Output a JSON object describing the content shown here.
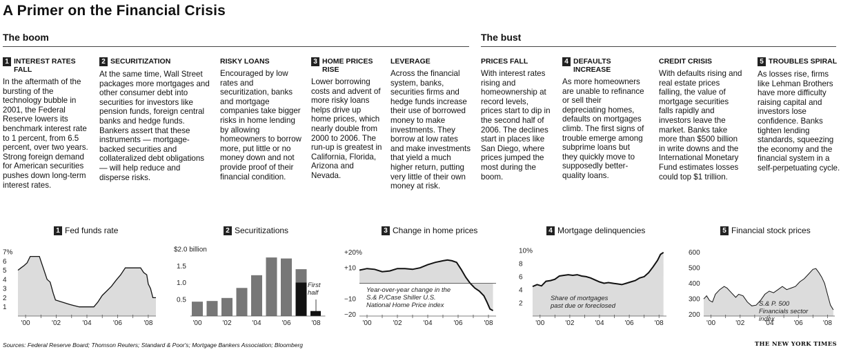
{
  "title": "A Primer on the Financial Crisis",
  "sections": {
    "boom": "The boom",
    "bust": "The bust"
  },
  "columns": [
    {
      "num": "1",
      "head": "INTEREST RATES FALL",
      "body": "In the aftermath of the bursting of the technology bubble in 2001, the Federal Reserve lowers its benchmark interest rate to 1 percent, from 6.5 percent, over two years. Strong foreign demand for American securities pushes down long-term interest rates."
    },
    {
      "num": "2",
      "head": "SECURITIZATION",
      "body": "At the same time, Wall Street packages more mortgages and other consumer debt into securities for investors like pension funds, foreign central banks and hedge funds. Bankers assert that these instruments — mortgage-backed securities and collateralized debt obligations — will help reduce and disperse risks."
    },
    {
      "num": "",
      "head": "RISKY LOANS",
      "body": "Encouraged by low rates and securitization, banks and mortgage companies take bigger risks in home lending by allowing homeowners to borrow more, put little or no money down and not provide proof of their financial condition."
    },
    {
      "num": "3",
      "head": "HOME PRICES RISE",
      "body": "Lower borrowing costs and advent of more risky loans helps drive up home prices, which nearly double from 2000 to 2006. The run-up is greatest in California, Florida, Arizona and Nevada."
    },
    {
      "num": "",
      "head": "LEVERAGE",
      "body": "Across the financial system, banks, securities firms and hedge funds increase their use of borrowed money to make investments. They borrow at low rates and make investments that yield a much higher return, putting very little of their own money at risk."
    },
    {
      "num": "",
      "head": "PRICES FALL",
      "body": "With interest rates rising and homeownership at record levels, prices start to dip in the second half of 2006. The declines start in places like San Diego, where prices jumped the most during the boom."
    },
    {
      "num": "4",
      "head": "DEFAULTS INCREASE",
      "body": "As more homeowners are unable to refinance or sell their depreciating homes, defaults on mortgages climb. The first signs of trouble emerge among subprime loans but they quickly move to supposedly better-quality loans."
    },
    {
      "num": "",
      "head": "CREDIT CRISIS",
      "body": "With defaults rising and real estate prices falling, the value of mortgage securities falls rapidly and investors leave the market. Banks take more than $500 billion in write downs and the International Monetary Fund estimates losses could top $1 trillion."
    },
    {
      "num": "5",
      "head": "TROUBLES SPIRAL",
      "body": "As losses rise, firms like Lehman Brothers have more difficulty raising capital and investors lose confidence. Banks tighten lending standards, squeezing the economy and the financial system in a self-perpetuating cycle."
    }
  ],
  "chart_data": [
    {
      "type": "area",
      "num": "1",
      "title": "Fed funds rate",
      "yticks": [
        "7%",
        "6",
        "5",
        "4",
        "3",
        "2",
        "1"
      ],
      "ylim": [
        0,
        7.3
      ],
      "xlim": [
        1999.5,
        2008.5
      ],
      "xticks": [
        "'00",
        "'02",
        "'04",
        "'06",
        "'08"
      ],
      "x": [
        1999.5,
        1999.7,
        1999.9,
        2000.1,
        2000.3,
        2000.5,
        2000.9,
        2001.0,
        2001.2,
        2001.4,
        2001.6,
        2001.8,
        2001.95,
        2002.9,
        2003.5,
        2004.45,
        2004.7,
        2005.0,
        2005.3,
        2005.6,
        2005.9,
        2006.2,
        2006.5,
        2006.7,
        2007.0,
        2007.5,
        2007.7,
        2007.9,
        2008.0,
        2008.15,
        2008.3,
        2008.5
      ],
      "y": [
        5.0,
        5.25,
        5.5,
        5.8,
        6.5,
        6.5,
        6.5,
        6.0,
        5.0,
        4.0,
        3.7,
        2.5,
        1.75,
        1.25,
        1.0,
        1.0,
        1.5,
        2.25,
        2.75,
        3.25,
        3.9,
        4.5,
        5.25,
        5.25,
        5.25,
        5.25,
        4.75,
        4.5,
        3.5,
        3.0,
        2.0,
        2.0
      ]
    },
    {
      "type": "bar",
      "num": "2",
      "title": "Securitizations",
      "yticks": [
        "$2.0 billion",
        "1.5",
        "1.0",
        "0.5"
      ],
      "ylim": [
        0,
        2.0
      ],
      "categories": [
        "'00",
        "'01",
        "'02",
        "'03",
        "'04",
        "'05",
        "'06",
        "'07",
        "'08"
      ],
      "values": [
        0.43,
        0.45,
        0.54,
        0.84,
        1.22,
        1.75,
        1.72,
        1.4,
        0.15
      ],
      "first_half_2007": 1.0,
      "annotation": "First half"
    },
    {
      "type": "line",
      "num": "3",
      "title": "Change in home prices",
      "yticks": [
        "+20%",
        "+10",
        "−10",
        "−20"
      ],
      "ylim": [
        -21,
        22
      ],
      "xlim": [
        1999.5,
        2008.5
      ],
      "xticks": [
        "'00",
        "'02",
        "'04",
        "'06",
        "'08"
      ],
      "x": [
        1999.5,
        2000.0,
        2000.5,
        2001.0,
        2001.5,
        2002.0,
        2002.5,
        2003.0,
        2003.5,
        2004.0,
        2004.5,
        2005.0,
        2005.3,
        2005.6,
        2005.9,
        2006.2,
        2006.5,
        2006.8,
        2007.1,
        2007.4,
        2007.7,
        2007.9,
        2008.1,
        2008.3
      ],
      "y": [
        8.5,
        9.5,
        9.0,
        7.5,
        8.0,
        9.5,
        9.5,
        9.0,
        10.0,
        12.0,
        13.5,
        14.5,
        15.0,
        14.5,
        13.5,
        9.0,
        4.0,
        0.0,
        -3.0,
        -5.0,
        -8.0,
        -12.0,
        -16.5,
        -17.5
      ],
      "note": "Year-over-year change in the S.& P./Case Shiller U.S. National Home Price index"
    },
    {
      "type": "area",
      "num": "4",
      "title": "Mortgage delinquencies",
      "yticks": [
        "10%",
        "8",
        "6",
        "4",
        "2"
      ],
      "ylim": [
        0,
        10.2
      ],
      "xlim": [
        1999.5,
        2008.5
      ],
      "xticks": [
        "'00",
        "'02",
        "'04",
        "'06",
        "'08"
      ],
      "x": [
        1999.5,
        1999.8,
        2000.1,
        2000.4,
        2000.7,
        2001.0,
        2001.3,
        2001.6,
        2001.9,
        2002.2,
        2002.5,
        2002.8,
        2003.1,
        2003.4,
        2003.7,
        2004.0,
        2004.3,
        2004.6,
        2004.9,
        2005.2,
        2005.5,
        2005.8,
        2006.1,
        2006.4,
        2006.7,
        2007.0,
        2007.3,
        2007.6,
        2007.9,
        2008.1,
        2008.3
      ],
      "y": [
        4.5,
        4.8,
        4.6,
        5.3,
        5.4,
        5.6,
        6.1,
        6.2,
        6.3,
        6.2,
        6.3,
        6.1,
        6.0,
        5.8,
        5.5,
        5.2,
        5.0,
        5.1,
        5.0,
        4.9,
        4.8,
        5.0,
        5.2,
        5.4,
        5.8,
        6.0,
        6.6,
        7.5,
        8.5,
        9.4,
        9.7
      ],
      "note": "Share of mortgages past due or foreclosed"
    },
    {
      "type": "area",
      "num": "5",
      "title": "Financial stock prices",
      "yticks": [
        "600",
        "500",
        "400",
        "300",
        "200"
      ],
      "ylim": [
        190,
        620
      ],
      "xlim": [
        1999.5,
        2008.5
      ],
      "xticks": [
        "'00",
        "'02",
        "'04",
        "'06",
        "'08"
      ],
      "x": [
        1999.5,
        1999.7,
        1999.9,
        2000.1,
        2000.3,
        2000.6,
        2000.9,
        2001.1,
        2001.4,
        2001.7,
        2001.9,
        2002.2,
        2002.5,
        2002.8,
        2003.1,
        2003.4,
        2003.7,
        2004.0,
        2004.3,
        2004.6,
        2004.9,
        2005.2,
        2005.5,
        2005.8,
        2006.1,
        2006.4,
        2006.7,
        2007.0,
        2007.2,
        2007.4,
        2007.6,
        2007.8,
        2008.0,
        2008.2,
        2008.4
      ],
      "y": [
        300,
        320,
        290,
        280,
        330,
        360,
        380,
        370,
        340,
        310,
        330,
        320,
        280,
        255,
        260,
        290,
        330,
        350,
        340,
        360,
        380,
        360,
        370,
        380,
        410,
        430,
        460,
        490,
        495,
        470,
        440,
        400,
        330,
        260,
        230
      ],
      "note": "S.& P. 500 Financials sector index"
    }
  ],
  "footer": {
    "sources": "Sources: Federal Reserve Board; Thomson Reuters; Standard & Poor's; Mortgage Bankers Association; Bloomberg",
    "logo": "THE NEW YORK TIMES"
  }
}
